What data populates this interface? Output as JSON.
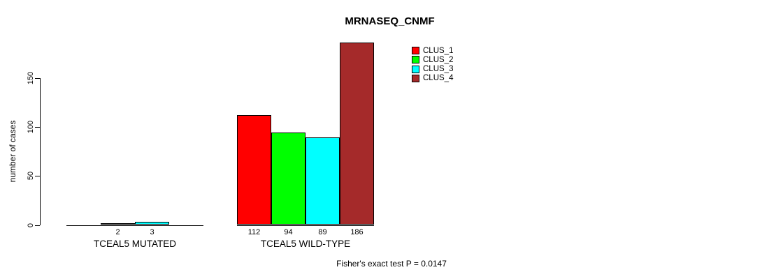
{
  "chart_data": {
    "type": "bar",
    "title": "MRNASEQ_CNMF",
    "ylabel": "number of cases",
    "xlabel": "",
    "categories": [
      "TCEAL5 MUTATED",
      "TCEAL5 WILD-TYPE"
    ],
    "series": [
      {
        "name": "CLUS_1",
        "color": "#FF0000",
        "values": [
          0,
          112
        ]
      },
      {
        "name": "CLUS_2",
        "color": "#00FF00",
        "values": [
          2,
          94
        ]
      },
      {
        "name": "CLUS_3",
        "color": "#00FFFF",
        "values": [
          3,
          89
        ]
      },
      {
        "name": "CLUS_4",
        "color": "#A52A2A",
        "values": [
          0,
          186
        ]
      }
    ],
    "bar_value_labels": {
      "TCEAL5 MUTATED": [
        null,
        "2",
        "3",
        null
      ],
      "TCEAL5 WILD-TYPE": [
        "112",
        "94",
        "89",
        "186"
      ]
    },
    "yticks": [
      0,
      50,
      100,
      150
    ],
    "ylim": [
      0,
      150
    ],
    "grid": false,
    "legend_position": "top-right",
    "legend_entries": [
      "CLUS_1",
      "CLUS_2",
      "CLUS_3",
      "CLUS_4"
    ],
    "annotation": "Fisher's exact test P = 0.0147"
  },
  "colors": {
    "axis": "#000000",
    "background": "#FFFFFF",
    "text": "#000000"
  }
}
